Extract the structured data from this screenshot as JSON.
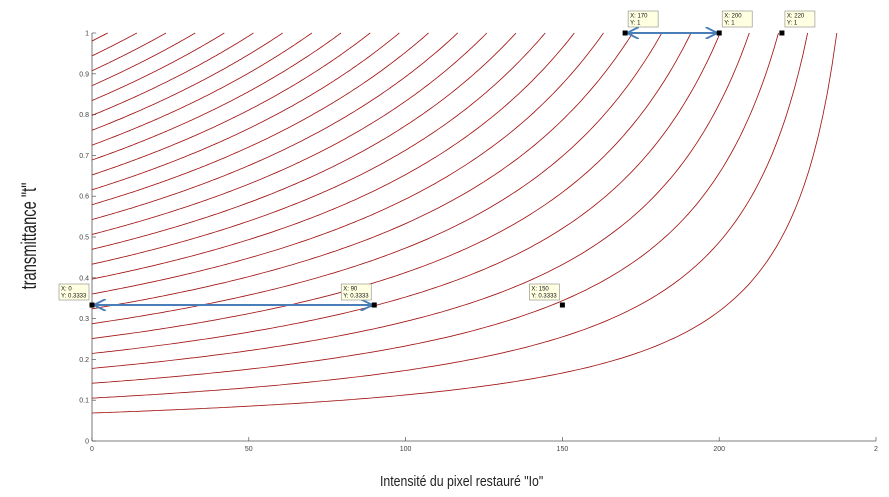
{
  "chart_data": {
    "type": "line",
    "xlabel": "Intensité du pixel restauré \"Io\"",
    "ylabel": "transmittance \"t\"",
    "xlim": [
      0,
      250
    ],
    "ylim": [
      0,
      1
    ],
    "xticks": [
      "0",
      "50",
      "100",
      "150",
      "200",
      "2"
    ],
    "yticks": [
      "0",
      "0.1",
      "0.2",
      "0.3",
      "0.4",
      "0.5",
      "0.6",
      "0.7",
      "0.8",
      "0.9",
      "1"
    ],
    "line_color": "#a31515",
    "arrow_color": "#4a7eb8",
    "series_model": "t = (A - I) / (A - Io), one curve per A, passing through t = 1 at Io = A",
    "curve_params": {
      "A": 255,
      "I_values": [
        5,
        14.3,
        23.6,
        32.9,
        42.2,
        51.5,
        60.8,
        70.1,
        79.4,
        88.7,
        98,
        107.3,
        116.6,
        125.9,
        135.2,
        144.5,
        153.8,
        163.1,
        172.4,
        181.7,
        191,
        200.3,
        209.6,
        218.9,
        228.2,
        237.5
      ]
    },
    "datatips": [
      {
        "x": 0,
        "y": 0.3333,
        "label_x": "X: 0",
        "label_y": "Y: 0.3333"
      },
      {
        "x": 90,
        "y": 0.3333,
        "label_x": "X: 90",
        "label_y": "Y: 0.3333"
      },
      {
        "x": 150,
        "y": 0.3333,
        "label_x": "X: 150",
        "label_y": "Y: 0.3333"
      },
      {
        "x": 170,
        "y": 1,
        "label_x": "X: 170",
        "label_y": "Y: 1"
      },
      {
        "x": 200,
        "y": 1,
        "label_x": "X: 200",
        "label_y": "Y: 1"
      },
      {
        "x": 220,
        "y": 1,
        "label_x": "X: 220",
        "label_y": "Y: 1"
      }
    ],
    "arrows": [
      {
        "from": [
          0,
          0.3333
        ],
        "to": [
          90,
          0.3333
        ]
      },
      {
        "from": [
          170,
          1
        ],
        "to": [
          200,
          1
        ]
      }
    ]
  }
}
